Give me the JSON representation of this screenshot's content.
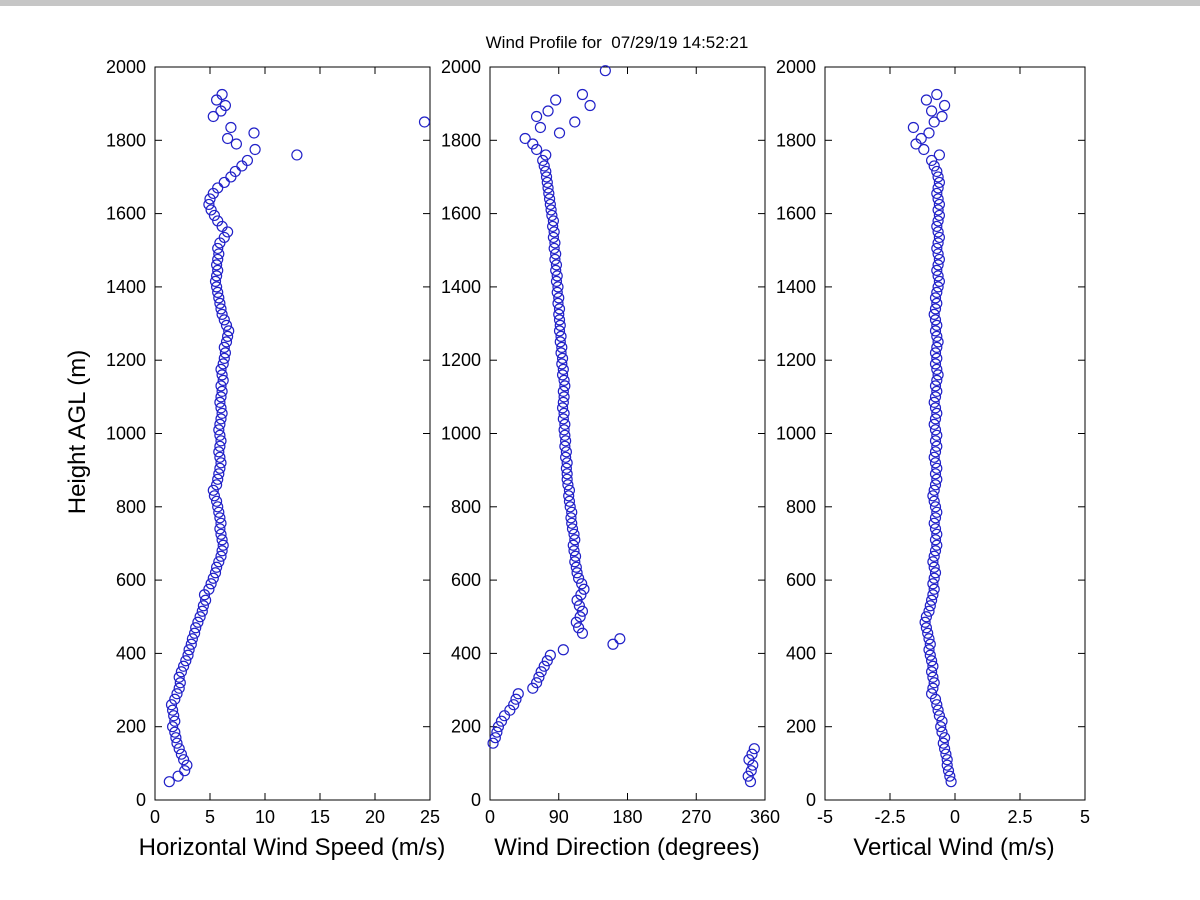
{
  "chart_data": {
    "type": "scatter",
    "title": "Wind Profile for  07/29/19 14:52:21",
    "ylabel": "Height AGL (m)",
    "ylim": [
      0,
      2000
    ],
    "yticks": [
      0,
      200,
      400,
      600,
      800,
      1000,
      1200,
      1400,
      1600,
      1800,
      2000
    ],
    "marker": {
      "shape": "circle-open",
      "color": "#2121c8",
      "size": 5
    },
    "height_m": [
      50,
      65,
      80,
      95,
      110,
      125,
      140,
      155,
      170,
      185,
      200,
      215,
      230,
      245,
      260,
      275,
      290,
      305,
      320,
      335,
      350,
      365,
      380,
      395,
      410,
      425,
      440,
      455,
      470,
      485,
      500,
      515,
      530,
      545,
      560,
      575,
      590,
      605,
      620,
      635,
      650,
      665,
      680,
      695,
      710,
      725,
      740,
      755,
      770,
      785,
      800,
      815,
      830,
      845,
      860,
      875,
      890,
      905,
      920,
      935,
      950,
      965,
      980,
      995,
      1010,
      1025,
      1040,
      1055,
      1070,
      1085,
      1100,
      1115,
      1130,
      1145,
      1160,
      1175,
      1190,
      1205,
      1220,
      1235,
      1250,
      1265,
      1280,
      1295,
      1310,
      1325,
      1340,
      1355,
      1370,
      1385,
      1400,
      1415,
      1430,
      1445,
      1460,
      1475,
      1490,
      1505,
      1520,
      1535,
      1550,
      1565,
      1580,
      1595,
      1610,
      1625,
      1640,
      1655,
      1670,
      1685,
      1700,
      1715,
      1730,
      1745,
      1760,
      1775,
      1790,
      1805,
      1820,
      1835,
      1850,
      1865,
      1880,
      1895,
      1910,
      1925,
      1990
    ],
    "panels": [
      {
        "id": "horizontal-wind-speed",
        "xlabel": "Horizontal Wind Speed (m/s)",
        "xlim": [
          0,
          25
        ],
        "xticks": [
          "0",
          "5",
          "10",
          "15",
          "20",
          "25"
        ],
        "values": [
          1.3,
          2.1,
          2.7,
          2.9,
          2.6,
          2.4,
          2.2,
          2.0,
          1.9,
          1.8,
          1.6,
          1.8,
          1.7,
          1.6,
          1.5,
          1.8,
          2.0,
          2.2,
          2.3,
          2.2,
          2.4,
          2.6,
          2.8,
          3.0,
          3.1,
          3.3,
          3.4,
          3.6,
          3.7,
          3.9,
          4.1,
          4.3,
          4.4,
          4.6,
          4.5,
          4.9,
          5.1,
          5.3,
          5.5,
          5.6,
          5.8,
          6.0,
          6.1,
          6.2,
          6.1,
          6.0,
          5.9,
          6.0,
          5.9,
          5.8,
          5.7,
          5.6,
          5.4,
          5.3,
          5.6,
          5.7,
          5.8,
          5.9,
          6.0,
          5.9,
          5.8,
          5.9,
          6.0,
          5.9,
          5.8,
          5.9,
          6.0,
          6.1,
          6.0,
          5.9,
          6.0,
          6.1,
          6.0,
          6.2,
          6.1,
          6.0,
          6.2,
          6.3,
          6.4,
          6.3,
          6.5,
          6.6,
          6.7,
          6.5,
          6.3,
          6.1,
          6.0,
          5.9,
          5.8,
          5.7,
          5.6,
          5.5,
          5.6,
          5.7,
          5.6,
          5.7,
          5.8,
          5.7,
          5.9,
          6.3,
          6.6,
          6.1,
          5.7,
          5.4,
          5.1,
          4.9,
          5.0,
          5.3,
          5.7,
          6.3,
          6.9,
          7.3,
          7.9,
          8.4,
          12.9,
          9.1,
          7.4,
          6.6,
          9.0,
          6.9,
          24.5,
          5.3,
          6.0,
          6.4,
          5.6,
          6.1,
          null
        ]
      },
      {
        "id": "wind-direction",
        "xlabel": "Wind Direction (degrees)",
        "xlim": [
          0,
          360
        ],
        "xticks": [
          "0",
          "90",
          "180",
          "270",
          "360"
        ],
        "values": [
          341,
          338,
          342,
          344,
          339,
          343,
          346,
          4,
          7,
          9,
          11,
          15,
          19,
          26,
          31,
          34,
          37,
          56,
          61,
          64,
          67,
          71,
          75,
          79,
          96,
          161,
          170,
          121,
          116,
          113,
          118,
          121,
          117,
          114,
          119,
          123,
          120,
          116,
          114,
          113,
          111,
          112,
          110,
          109,
          111,
          110,
          108,
          107,
          106,
          107,
          105,
          104,
          103,
          104,
          102,
          101,
          101,
          100,
          101,
          99,
          100,
          98,
          99,
          98,
          97,
          98,
          96,
          97,
          95,
          96,
          97,
          96,
          98,
          97,
          95,
          96,
          94,
          95,
          93,
          94,
          92,
          93,
          91,
          92,
          91,
          90,
          91,
          89,
          90,
          88,
          89,
          87,
          88,
          86,
          87,
          85,
          86,
          84,
          85,
          83,
          84,
          82,
          83,
          81,
          80,
          79,
          78,
          77,
          76,
          75,
          74,
          73,
          71,
          69,
          73,
          61,
          56,
          46,
          91,
          66,
          111,
          61,
          76,
          131,
          86,
          121,
          151
        ]
      },
      {
        "id": "vertical-wind",
        "xlabel": "Vertical Wind (m/s)",
        "xlim": [
          -5,
          5
        ],
        "xticks": [
          "-5",
          "-2.5",
          "0",
          "2.5",
          "5"
        ],
        "values": [
          -0.15,
          -0.2,
          -0.25,
          -0.3,
          -0.3,
          -0.35,
          -0.4,
          -0.45,
          -0.4,
          -0.5,
          -0.55,
          -0.5,
          -0.6,
          -0.65,
          -0.7,
          -0.75,
          -0.9,
          -0.85,
          -0.8,
          -0.85,
          -0.9,
          -0.85,
          -0.9,
          -0.95,
          -1.0,
          -0.95,
          -1.0,
          -1.05,
          -1.1,
          -1.15,
          -1.1,
          -1.0,
          -0.95,
          -0.9,
          -0.85,
          -0.8,
          -0.85,
          -0.8,
          -0.75,
          -0.8,
          -0.85,
          -0.8,
          -0.75,
          -0.7,
          -0.75,
          -0.7,
          -0.75,
          -0.8,
          -0.75,
          -0.7,
          -0.75,
          -0.8,
          -0.85,
          -0.8,
          -0.75,
          -0.7,
          -0.75,
          -0.7,
          -0.75,
          -0.8,
          -0.75,
          -0.7,
          -0.75,
          -0.7,
          -0.75,
          -0.8,
          -0.75,
          -0.7,
          -0.75,
          -0.8,
          -0.75,
          -0.7,
          -0.75,
          -0.7,
          -0.65,
          -0.7,
          -0.75,
          -0.7,
          -0.75,
          -0.7,
          -0.65,
          -0.7,
          -0.75,
          -0.7,
          -0.75,
          -0.8,
          -0.75,
          -0.7,
          -0.75,
          -0.7,
          -0.65,
          -0.6,
          -0.65,
          -0.7,
          -0.65,
          -0.6,
          -0.65,
          -0.7,
          -0.65,
          -0.6,
          -0.65,
          -0.7,
          -0.65,
          -0.6,
          -0.65,
          -0.6,
          -0.65,
          -0.7,
          -0.65,
          -0.6,
          -0.65,
          -0.7,
          -0.8,
          -0.9,
          -0.6,
          -1.2,
          -1.5,
          -1.3,
          -1.0,
          -1.6,
          -0.8,
          -0.5,
          -0.9,
          -0.4,
          -1.1,
          -0.7,
          null
        ]
      }
    ]
  }
}
